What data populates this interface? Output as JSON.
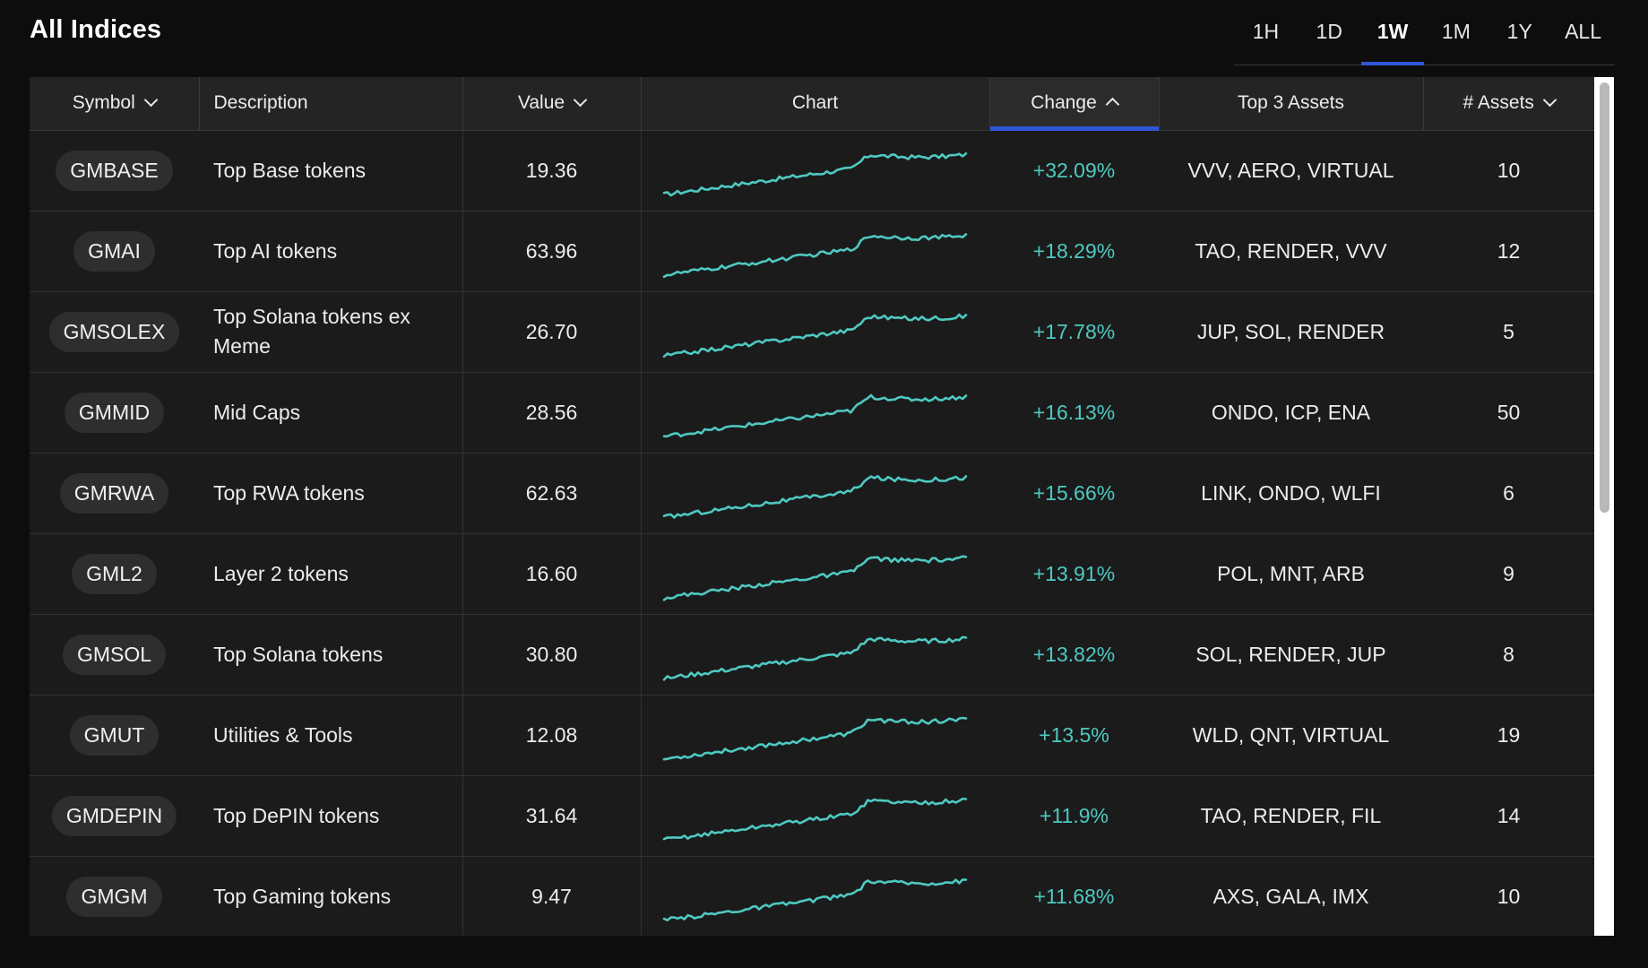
{
  "page": {
    "title": "All Indices"
  },
  "timeframes": [
    {
      "label": "1H",
      "active": false
    },
    {
      "label": "1D",
      "active": false
    },
    {
      "label": "1W",
      "active": true
    },
    {
      "label": "1M",
      "active": false
    },
    {
      "label": "1Y",
      "active": false
    },
    {
      "label": "ALL",
      "active": false
    }
  ],
  "columns": {
    "symbol": "Symbol",
    "description": "Description",
    "value": "Value",
    "chart": "Chart",
    "change": "Change",
    "top3": "Top 3 Assets",
    "assets": "# Assets"
  },
  "colors": {
    "accent": "#2f56d9",
    "positive": "#4ec9c1",
    "sparkline": "#4ec9c1"
  },
  "rows": [
    {
      "symbol": "GMBASE",
      "description": "Top Base tokens",
      "value": "19.36",
      "change": "+32.09%",
      "top3": "VVV, AERO, VIRTUAL",
      "assets": "10"
    },
    {
      "symbol": "GMAI",
      "description": "Top AI tokens",
      "value": "63.96",
      "change": "+18.29%",
      "top3": "TAO, RENDER, VVV",
      "assets": "12"
    },
    {
      "symbol": "GMSOLEX",
      "description": "Top Solana tokens ex Meme",
      "value": "26.70",
      "change": "+17.78%",
      "top3": "JUP, SOL, RENDER",
      "assets": "5"
    },
    {
      "symbol": "GMMID",
      "description": "Mid Caps",
      "value": "28.56",
      "change": "+16.13%",
      "top3": "ONDO, ICP, ENA",
      "assets": "50"
    },
    {
      "symbol": "GMRWA",
      "description": "Top RWA tokens",
      "value": "62.63",
      "change": "+15.66%",
      "top3": "LINK, ONDO, WLFI",
      "assets": "6"
    },
    {
      "symbol": "GML2",
      "description": "Layer 2 tokens",
      "value": "16.60",
      "change": "+13.91%",
      "top3": "POL, MNT, ARB",
      "assets": "9"
    },
    {
      "symbol": "GMSOL",
      "description": "Top Solana tokens",
      "value": "30.80",
      "change": "+13.82%",
      "top3": "SOL, RENDER, JUP",
      "assets": "8"
    },
    {
      "symbol": "GMUT",
      "description": "Utilities & Tools",
      "value": "12.08",
      "change": "+13.5%",
      "top3": "WLD, QNT, VIRTUAL",
      "assets": "19"
    },
    {
      "symbol": "GMDEPIN",
      "description": "Top DePIN tokens",
      "value": "31.64",
      "change": "+11.9%",
      "top3": "TAO, RENDER, FIL",
      "assets": "14"
    },
    {
      "symbol": "GMGM",
      "description": "Top Gaming tokens",
      "value": "9.47",
      "change": "+11.68%",
      "top3": "AXS, GALA, IMX",
      "assets": "10"
    }
  ]
}
